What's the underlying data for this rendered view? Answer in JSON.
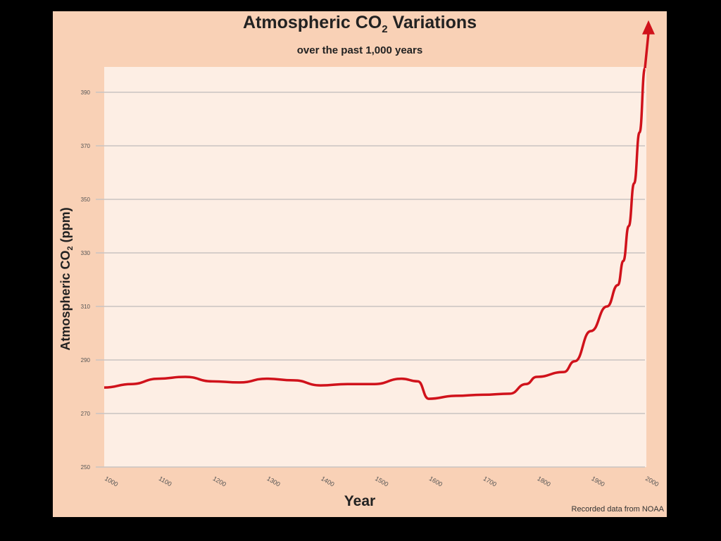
{
  "chart_data": {
    "type": "line",
    "title": "Atmospheric CO",
    "title_sub": "2",
    "title_rest": " Variations",
    "subtitle": "over the past 1,000 years",
    "xlabel": "Year",
    "ylabel": "Atmospheric CO",
    "ylabel_sub": "2",
    "ylabel_rest": " (ppm)",
    "source": "Recorded data from NOAA",
    "xlim": [
      1000,
      2000
    ],
    "ylim": [
      250,
      390
    ],
    "x_ticks": [
      "1000",
      "1100",
      "1200",
      "1300",
      "1400",
      "1500",
      "1600",
      "1700",
      "1800",
      "1900",
      "2000"
    ],
    "y_ticks": [
      "250",
      "270",
      "290",
      "310",
      "330",
      "350",
      "370",
      "390"
    ],
    "grid": true,
    "line_color": "#d0121b",
    "series": [
      {
        "name": "CO2",
        "x": [
          1000,
          1050,
          1100,
          1150,
          1200,
          1250,
          1300,
          1350,
          1400,
          1450,
          1500,
          1550,
          1580,
          1600,
          1650,
          1700,
          1750,
          1780,
          1800,
          1850,
          1870,
          1900,
          1930,
          1950,
          1960,
          1970,
          1980,
          1990,
          2000
        ],
        "y": [
          279.7,
          281,
          283,
          283.7,
          282,
          281.6,
          283,
          282.4,
          280.5,
          281,
          281,
          283,
          282,
          275.5,
          276.6,
          277,
          277.4,
          281,
          283.7,
          285.5,
          289.5,
          300.8,
          310,
          318,
          327,
          340,
          356,
          375,
          399
        ]
      }
    ]
  }
}
